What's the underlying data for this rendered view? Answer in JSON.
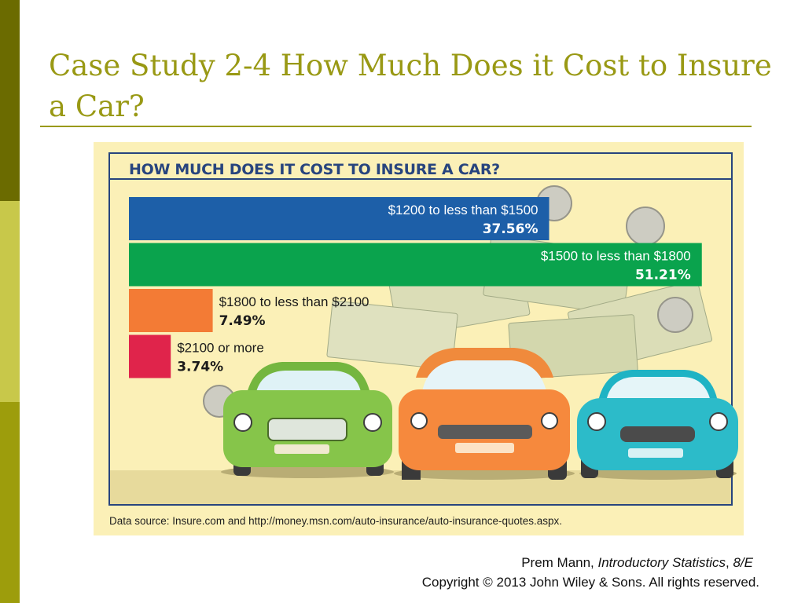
{
  "slide": {
    "title": "Case Study 2-4 How Much Does it Cost to Insure a Car?"
  },
  "figure": {
    "source": "Data source: Insure.com and http://money.msn.com/auto-insurance/auto-insurance-quotes.aspx."
  },
  "chart_data": {
    "type": "bar",
    "orientation": "horizontal",
    "title": "HOW MUCH DOES IT COST TO INSURE A CAR?",
    "categories": [
      "$1200 to less than $1500",
      "$1500 to less than $1800",
      "$1800 to less than $2100",
      "$2100 or more"
    ],
    "values": [
      37.56,
      51.21,
      7.49,
      3.74
    ],
    "value_labels": [
      "37.56%",
      "51.21%",
      "7.49%",
      "3.74%"
    ],
    "colors": [
      "#1d5fa8",
      "#0aa34d",
      "#f37b35",
      "#e0244b"
    ],
    "grid": false
  },
  "colors": {
    "accent": "#999914",
    "heading": "#27447e",
    "figure_background": "#fbf0b7"
  },
  "footer": {
    "author": "Prem Mann, ",
    "book": "Introductory Statistics",
    "sep": ", ",
    "edition": "8/E",
    "copyright": "Copyright © 2013 John Wiley & Sons. All rights reserved."
  }
}
